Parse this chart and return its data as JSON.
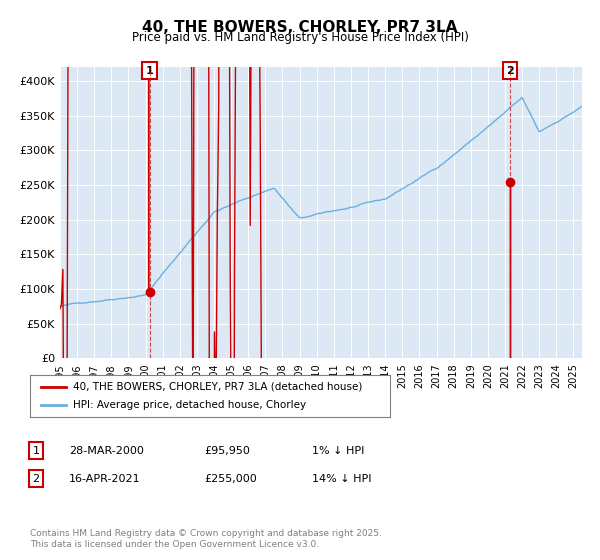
{
  "title": "40, THE BOWERS, CHORLEY, PR7 3LA",
  "subtitle": "Price paid vs. HM Land Registry's House Price Index (HPI)",
  "background_color": "#dce9f5",
  "plot_bg_color": "#dce9f5",
  "hpi_color": "#6ab0de",
  "price_color": "#cc0000",
  "marker_color": "#cc0000",
  "vline_color": "#cc0000",
  "ylim": [
    0,
    420000
  ],
  "yticks": [
    0,
    50000,
    100000,
    150000,
    200000,
    250000,
    300000,
    350000,
    400000
  ],
  "ytick_labels": [
    "£0",
    "£50K",
    "£100K",
    "£150K",
    "£200K",
    "£250K",
    "£300K",
    "£350K",
    "£400K"
  ],
  "xlim_start": 1995.0,
  "xlim_end": 2025.5,
  "xtick_years": [
    1995,
    1996,
    1997,
    1998,
    1999,
    2000,
    2001,
    2002,
    2003,
    2004,
    2005,
    2006,
    2007,
    2008,
    2009,
    2010,
    2011,
    2012,
    2013,
    2014,
    2015,
    2016,
    2017,
    2018,
    2019,
    2020,
    2021,
    2022,
    2023,
    2024,
    2025
  ],
  "sale1_x": 2000.24,
  "sale1_y": 95950,
  "sale1_label": "1",
  "sale2_x": 2021.29,
  "sale2_y": 255000,
  "sale2_label": "2",
  "legend_line1": "40, THE BOWERS, CHORLEY, PR7 3LA (detached house)",
  "legend_line2": "HPI: Average price, detached house, Chorley",
  "table_row1": [
    "1",
    "28-MAR-2000",
    "£95,950",
    "1% ↓ HPI"
  ],
  "table_row2": [
    "2",
    "16-APR-2021",
    "£255,000",
    "14% ↓ HPI"
  ],
  "footer": "Contains HM Land Registry data © Crown copyright and database right 2025.\nThis data is licensed under the Open Government Licence v3.0."
}
